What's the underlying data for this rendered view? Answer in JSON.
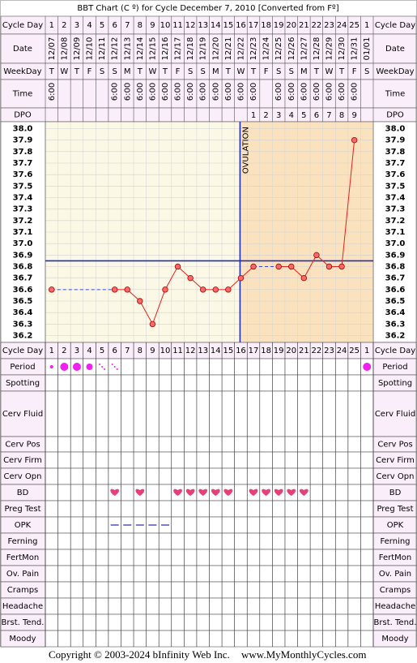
{
  "chart_data": {
    "type": "line",
    "title": "BBT Chart (C º) for Cycle December 7, 2010  [Converted from Fº]",
    "header_labels": [
      "Cycle Day",
      "Date",
      "WeekDay",
      "Time",
      "DPO"
    ],
    "categories": [
      "1",
      "2",
      "3",
      "4",
      "5",
      "6",
      "7",
      "8",
      "9",
      "10",
      "11",
      "12",
      "13",
      "14",
      "15",
      "16",
      "17",
      "18",
      "19",
      "20",
      "21",
      "22",
      "23",
      "24",
      "25",
      "1"
    ],
    "dates": [
      "12/07",
      "12/08",
      "12/09",
      "12/10",
      "12/11",
      "12/12",
      "12/13",
      "12/14",
      "12/15",
      "12/16",
      "12/17",
      "12/18",
      "12/19",
      "12/20",
      "12/21",
      "12/22",
      "12/23",
      "12/24",
      "12/25",
      "12/26",
      "12/27",
      "12/28",
      "12/29",
      "12/30",
      "12/31",
      "01/01"
    ],
    "weekdays": [
      "T",
      "W",
      "T",
      "F",
      "S",
      "S",
      "M",
      "T",
      "W",
      "T",
      "F",
      "S",
      "S",
      "M",
      "T",
      "W",
      "T",
      "F",
      "S",
      "S",
      "M",
      "T",
      "W",
      "T",
      "F",
      "S"
    ],
    "times": [
      "6:00",
      null,
      null,
      null,
      null,
      "6:00",
      "6:00",
      "6:00",
      "6:00",
      "6:00",
      "6:00",
      "6:00",
      "6:00",
      "6:00",
      "6:00",
      "6:00",
      "6:00",
      null,
      "6:00",
      "6:00",
      "6:00",
      "6:00",
      "6:00",
      "6:00",
      "6:00",
      null
    ],
    "dpo": [
      null,
      null,
      null,
      null,
      null,
      null,
      null,
      null,
      null,
      null,
      null,
      null,
      null,
      null,
      null,
      null,
      1,
      2,
      3,
      4,
      5,
      6,
      7,
      8,
      9,
      null
    ],
    "series": [
      {
        "color": "#e8201c",
        "values": [
          36.6,
          null,
          null,
          null,
          null,
          36.6,
          36.6,
          36.5,
          36.3,
          36.6,
          36.8,
          36.7,
          36.6,
          36.6,
          36.6,
          36.7,
          36.8,
          null,
          36.8,
          36.8,
          36.7,
          36.9,
          36.8,
          36.8,
          37.9,
          null
        ]
      }
    ],
    "ylim": [
      36.14,
      38.06
    ],
    "yticks": [
      {
        "value": 38.0,
        "label": "38.0"
      },
      37.9,
      37.8,
      37.7,
      37.6,
      37.5,
      37.4,
      37.3,
      37.2,
      37.1,
      {
        "value": 37.0,
        "label": "37.0"
      },
      36.9,
      36.8,
      36.7,
      36.6,
      36.5,
      36.4,
      36.3,
      36.2
    ],
    "coverline": 36.85,
    "ovulation_day": 16,
    "ovulation_label": "OVULATION",
    "row_labels": [
      "Cycle Day",
      "Period",
      "Spotting",
      "Cerv Fluid",
      "Cerv Pos",
      "Cerv Firm",
      "Cerv Opn",
      "BD",
      "Preg Test",
      "OPK",
      "Ferning",
      "FertMon",
      "Ov. Pain",
      "Cramps",
      "Headache",
      "Brst. Tend.",
      "Moody"
    ],
    "copyright": "Copyright © 2003-2024 bInfinity Web Inc.",
    "site": "www.MyMonthlyCycles.com"
  }
}
